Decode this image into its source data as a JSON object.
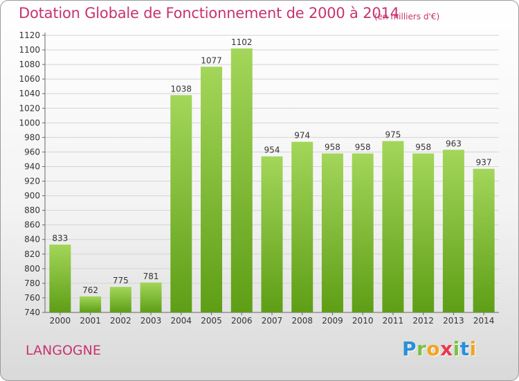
{
  "title": "Dotation Globale de Fonctionnement de 2000 à 2014",
  "unit": "(en milliers d'€)",
  "commune": "LANGOGNE",
  "logo": {
    "letters": [
      "P",
      "r",
      "o",
      "x",
      "i",
      "t",
      "i"
    ],
    "colors": [
      "#2b8fd6",
      "#7ac143",
      "#f4a51c",
      "#e8384f",
      "#7ac143",
      "#2b8fd6",
      "#f4a51c"
    ]
  },
  "colors": {
    "bar_top": "#a3d65a",
    "bar_bottom": "#5e9e16",
    "title": "#c8326e",
    "text": "#333333"
  },
  "chart_data": {
    "type": "bar",
    "title": "Dotation Globale de Fonctionnement de 2000 à 2014",
    "categories": [
      "2000",
      "2001",
      "2002",
      "2003",
      "2004",
      "2005",
      "2006",
      "2007",
      "2008",
      "2009",
      "2010",
      "2011",
      "2012",
      "2013",
      "2014"
    ],
    "values": [
      833,
      762,
      775,
      781,
      1038,
      1077,
      1102,
      954,
      974,
      958,
      958,
      975,
      958,
      963,
      937
    ],
    "ylim": [
      740,
      1120
    ],
    "yticks": [
      740,
      760,
      780,
      800,
      820,
      840,
      860,
      880,
      900,
      920,
      940,
      960,
      980,
      1000,
      1020,
      1040,
      1060,
      1080,
      1100,
      1120
    ],
    "grid": true,
    "xlabel": "",
    "ylabel": ""
  }
}
